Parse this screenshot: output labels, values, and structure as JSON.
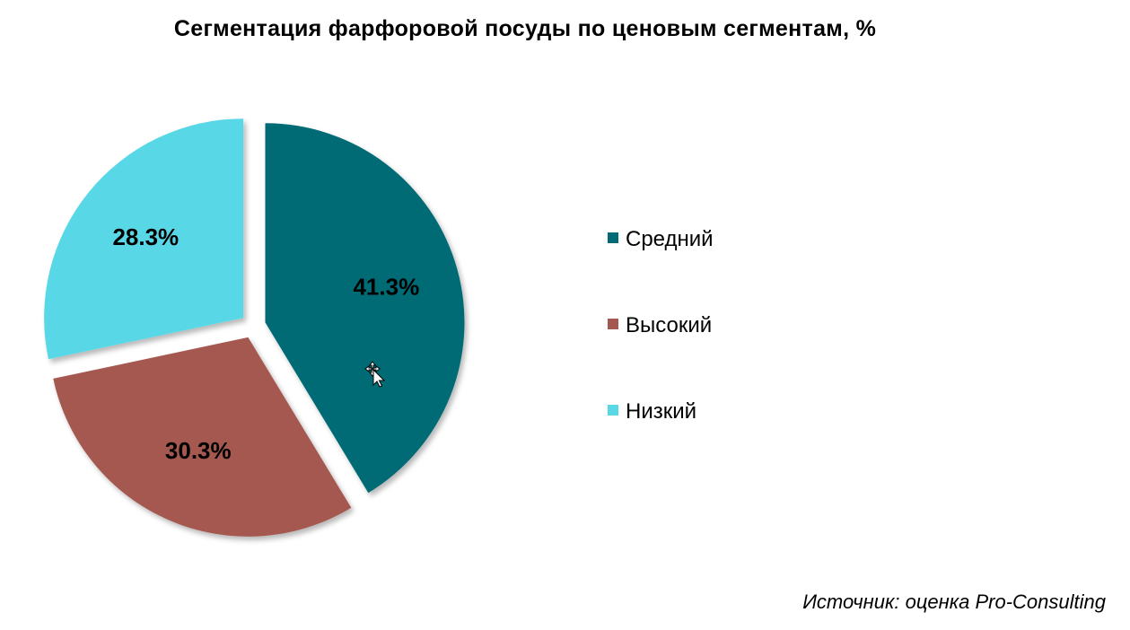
{
  "chart_data": {
    "type": "pie",
    "title": "Сегментация фарфоровой посуды по ценовым сегментам, %",
    "categories": [
      "Средний",
      "Высокий",
      "Низкий"
    ],
    "values": [
      41.3,
      30.3,
      28.3
    ],
    "labels": [
      "41.3%",
      "30.3%",
      "28.3%"
    ],
    "colors": [
      "#006b74",
      "#a5584f",
      "#58d8e6"
    ],
    "legend_position": "right",
    "exploded": true
  },
  "source_note": "Источник: оценка Pro-Consulting",
  "icons": {
    "cursor": "move-cursor-icon"
  }
}
